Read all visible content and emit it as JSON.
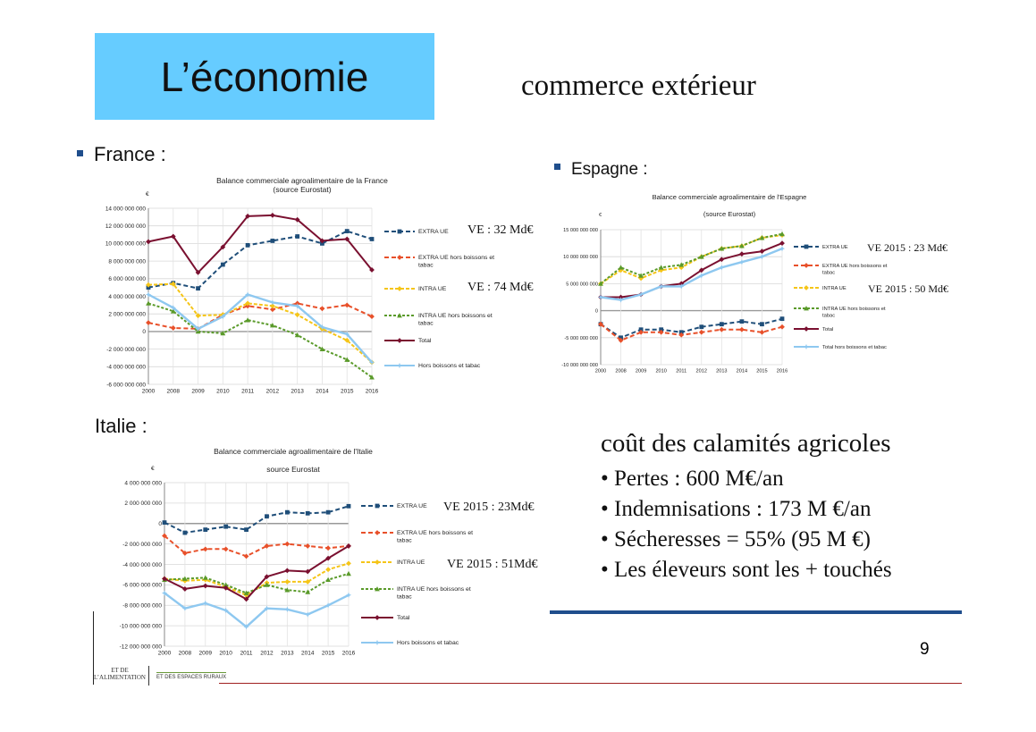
{
  "slide": {
    "title": "L’économie",
    "subtitle": "commerce extérieur",
    "page_number": "9",
    "labels": {
      "france": "France :",
      "spain": "Espagne :",
      "italy": "Italie :"
    },
    "cost": {
      "heading": "coût des calamités agricoles",
      "items": [
        "• Pertes : 600 M€/an",
        "• Indemnisations : 173 M €/an",
        "• Sécheresses = 55% (95 M €)",
        "• Les éleveurs sont les + touchés"
      ]
    },
    "logos": {
      "left_line1": "ET DE",
      "left_line2": "L’ALIMENTATION",
      "right": "ET DES ESPACES RURAUX"
    },
    "colors": {
      "title_box": "#66ccff",
      "rule_blue": "#1f4e8c",
      "rule_red": "#a02020"
    }
  },
  "chart_data": [
    {
      "type": "line",
      "id": "france",
      "title": "Balance commerciale agroalimentaire de la France",
      "title2": "(source Eurostat)",
      "ylabel": "€",
      "ylim": [
        -6000000000,
        14000000000
      ],
      "yticks": [
        -6000000000,
        -4000000000,
        -2000000000,
        0,
        2000000000,
        4000000000,
        6000000000,
        8000000000,
        10000000000,
        12000000000,
        14000000000
      ],
      "ytick_labels": [
        "-6 000 000 000",
        "-4 000 000 000",
        "-2 000 000 000",
        "0",
        "2 000 000 000",
        "4 000 000 000",
        "6 000 000 000",
        "8 000 000 000",
        "10 000 000 000",
        "12 000 000 000",
        "14 000 000 000"
      ],
      "categories": [
        "2000",
        "2008",
        "2009",
        "2010",
        "2011",
        "2012",
        "2013",
        "2014",
        "2015",
        "2016"
      ],
      "annotations": [
        "VE : 32 Md€",
        "VE : 74 Md€"
      ],
      "series": [
        {
          "name": "EXTRA UE",
          "color": "#1f4e79",
          "dash": "5,3",
          "marker": "square",
          "values": [
            5000000000,
            5500000000,
            4900000000,
            7600000000,
            9800000000,
            10300000000,
            10800000000,
            10000000000,
            11400000000,
            10500000000
          ]
        },
        {
          "name": "EXTRA UE hors boissons et tabac",
          "color": "#e8502a",
          "dash": "5,3",
          "marker": "diamond",
          "values": [
            1000000000,
            400000000,
            300000000,
            1900000000,
            2900000000,
            2500000000,
            3200000000,
            2600000000,
            3000000000,
            1700000000
          ]
        },
        {
          "name": "INTRA UE",
          "color": "#f5c518",
          "dash": "4,2",
          "marker": "diamond",
          "values": [
            5300000000,
            5400000000,
            1800000000,
            1900000000,
            3200000000,
            2900000000,
            1900000000,
            300000000,
            -1000000000,
            -3500000000
          ]
        },
        {
          "name": "INTRA UE hors boissons et tabac",
          "color": "#5a9a2a",
          "dash": "3,2",
          "marker": "triangle",
          "values": [
            3200000000,
            2300000000,
            0,
            -200000000,
            1300000000,
            700000000,
            -400000000,
            -2000000000,
            -3200000000,
            -5200000000
          ]
        },
        {
          "name": "Total",
          "color": "#7a1030",
          "dash": "",
          "marker": "diamond",
          "values": [
            10200000000,
            10800000000,
            6700000000,
            9600000000,
            13100000000,
            13200000000,
            12700000000,
            10300000000,
            10500000000,
            7000000000
          ]
        },
        {
          "name": "Hors boissons et tabac",
          "color": "#8ec8f0",
          "dash": "",
          "marker": "star",
          "values": [
            4200000000,
            2700000000,
            300000000,
            1700000000,
            4200000000,
            3300000000,
            2900000000,
            500000000,
            -300000000,
            -3500000000
          ]
        }
      ]
    },
    {
      "type": "line",
      "id": "spain",
      "title": "Balance commerciale agroalimentaire de l'Espagne",
      "title2": "(source Eurostat)",
      "ylabel": "€",
      "ylim": [
        -10000000000,
        15000000000
      ],
      "yticks": [
        -10000000000,
        -5000000000,
        0,
        5000000000,
        10000000000,
        15000000000
      ],
      "ytick_labels": [
        "-10 000 000 000",
        "-5 000 000 000",
        "0",
        "5 000 000 000",
        "10 000 000 000",
        "15 000 000 000"
      ],
      "categories": [
        "2000",
        "2008",
        "2009",
        "2010",
        "2011",
        "2012",
        "2013",
        "2014",
        "2015",
        "2016"
      ],
      "annotations": [
        "VE 2015 : 23 Md€",
        "VE 2015 : 50 Md€"
      ],
      "series": [
        {
          "name": "EXTRA UE",
          "color": "#1f4e79",
          "dash": "5,3",
          "marker": "square",
          "values": [
            -2500000000,
            -5000000000,
            -3500000000,
            -3500000000,
            -4000000000,
            -3000000000,
            -2500000000,
            -2000000000,
            -2500000000,
            -1500000000
          ]
        },
        {
          "name": "EXTRA UE hors boissons et tabac",
          "color": "#e8502a",
          "dash": "5,3",
          "marker": "diamond",
          "values": [
            -2500000000,
            -5500000000,
            -4000000000,
            -4000000000,
            -4500000000,
            -4000000000,
            -3500000000,
            -3500000000,
            -4000000000,
            -3000000000
          ]
        },
        {
          "name": "INTRA UE",
          "color": "#f5c518",
          "dash": "4,2",
          "marker": "diamond",
          "values": [
            5000000000,
            7500000000,
            6000000000,
            7500000000,
            8000000000,
            10000000000,
            11500000000,
            12000000000,
            13500000000,
            14000000000
          ]
        },
        {
          "name": "INTRA UE hors boissons et tabac",
          "color": "#5a9a2a",
          "dash": "3,2",
          "marker": "triangle",
          "values": [
            5000000000,
            8000000000,
            6500000000,
            8000000000,
            8500000000,
            10000000000,
            11500000000,
            12000000000,
            13500000000,
            14200000000
          ]
        },
        {
          "name": "Total",
          "color": "#7a1030",
          "dash": "",
          "marker": "diamond",
          "values": [
            2500000000,
            2500000000,
            3000000000,
            4500000000,
            5000000000,
            7500000000,
            9500000000,
            10500000000,
            11000000000,
            12500000000
          ]
        },
        {
          "name": "Total hors boissons et tabac",
          "color": "#8ec8f0",
          "dash": "",
          "marker": "star",
          "values": [
            2500000000,
            2000000000,
            3000000000,
            4500000000,
            4500000000,
            6500000000,
            8000000000,
            9000000000,
            10000000000,
            11500000000
          ]
        }
      ]
    },
    {
      "type": "line",
      "id": "italy",
      "title": "Balance commerciale agroalimentaire de l'Italie",
      "title2": "source Eurostat",
      "ylabel": "€",
      "ylim": [
        -12000000000,
        4000000000
      ],
      "yticks": [
        -12000000000,
        -10000000000,
        -8000000000,
        -6000000000,
        -4000000000,
        -2000000000,
        0,
        2000000000,
        4000000000
      ],
      "ytick_labels": [
        "-12 000 000 000",
        "-10 000 000 000",
        "-8 000 000 000",
        "-6 000 000 000",
        "-4 000 000 000",
        "-2 000 000 000",
        "0",
        "2 000 000 000",
        "4 000 000 000"
      ],
      "categories": [
        "2000",
        "2008",
        "2009",
        "2010",
        "2011",
        "2012",
        "2013",
        "2014",
        "2015",
        "2016"
      ],
      "annotations": [
        "VE 2015 : 23Md€",
        "VE 2015 : 51Md€"
      ],
      "series": [
        {
          "name": "EXTRA UE",
          "color": "#1f4e79",
          "dash": "5,3",
          "marker": "square",
          "values": [
            100000000,
            -900000000,
            -600000000,
            -300000000,
            -600000000,
            700000000,
            1100000000,
            1000000000,
            1100000000,
            1700000000
          ]
        },
        {
          "name": "EXTRA UE hors boissons et tabac",
          "color": "#e8502a",
          "dash": "5,3",
          "marker": "diamond",
          "values": [
            -1200000000,
            -2900000000,
            -2500000000,
            -2500000000,
            -3200000000,
            -2200000000,
            -2000000000,
            -2200000000,
            -2400000000,
            -2200000000
          ]
        },
        {
          "name": "INTRA UE",
          "color": "#f5c518",
          "dash": "4,2",
          "marker": "diamond",
          "values": [
            -5400000000,
            -5600000000,
            -5500000000,
            -6200000000,
            -7000000000,
            -5800000000,
            -5700000000,
            -5700000000,
            -4500000000,
            -3900000000
          ]
        },
        {
          "name": "INTRA UE hors boissons et tabac",
          "color": "#5a9a2a",
          "dash": "3,2",
          "marker": "triangle",
          "values": [
            -5500000000,
            -5400000000,
            -5300000000,
            -6000000000,
            -6800000000,
            -6000000000,
            -6500000000,
            -6700000000,
            -5500000000,
            -4900000000
          ]
        },
        {
          "name": "Total",
          "color": "#7a1030",
          "dash": "",
          "marker": "diamond",
          "values": [
            -5400000000,
            -6400000000,
            -6100000000,
            -6300000000,
            -7400000000,
            -5200000000,
            -4600000000,
            -4700000000,
            -3400000000,
            -2200000000
          ]
        },
        {
          "name": "Hors boissons et tabac",
          "color": "#8ec8f0",
          "dash": "",
          "marker": "star",
          "values": [
            -6800000000,
            -8300000000,
            -7800000000,
            -8500000000,
            -10100000000,
            -8300000000,
            -8400000000,
            -8900000000,
            -8000000000,
            -7000000000
          ]
        }
      ]
    }
  ]
}
